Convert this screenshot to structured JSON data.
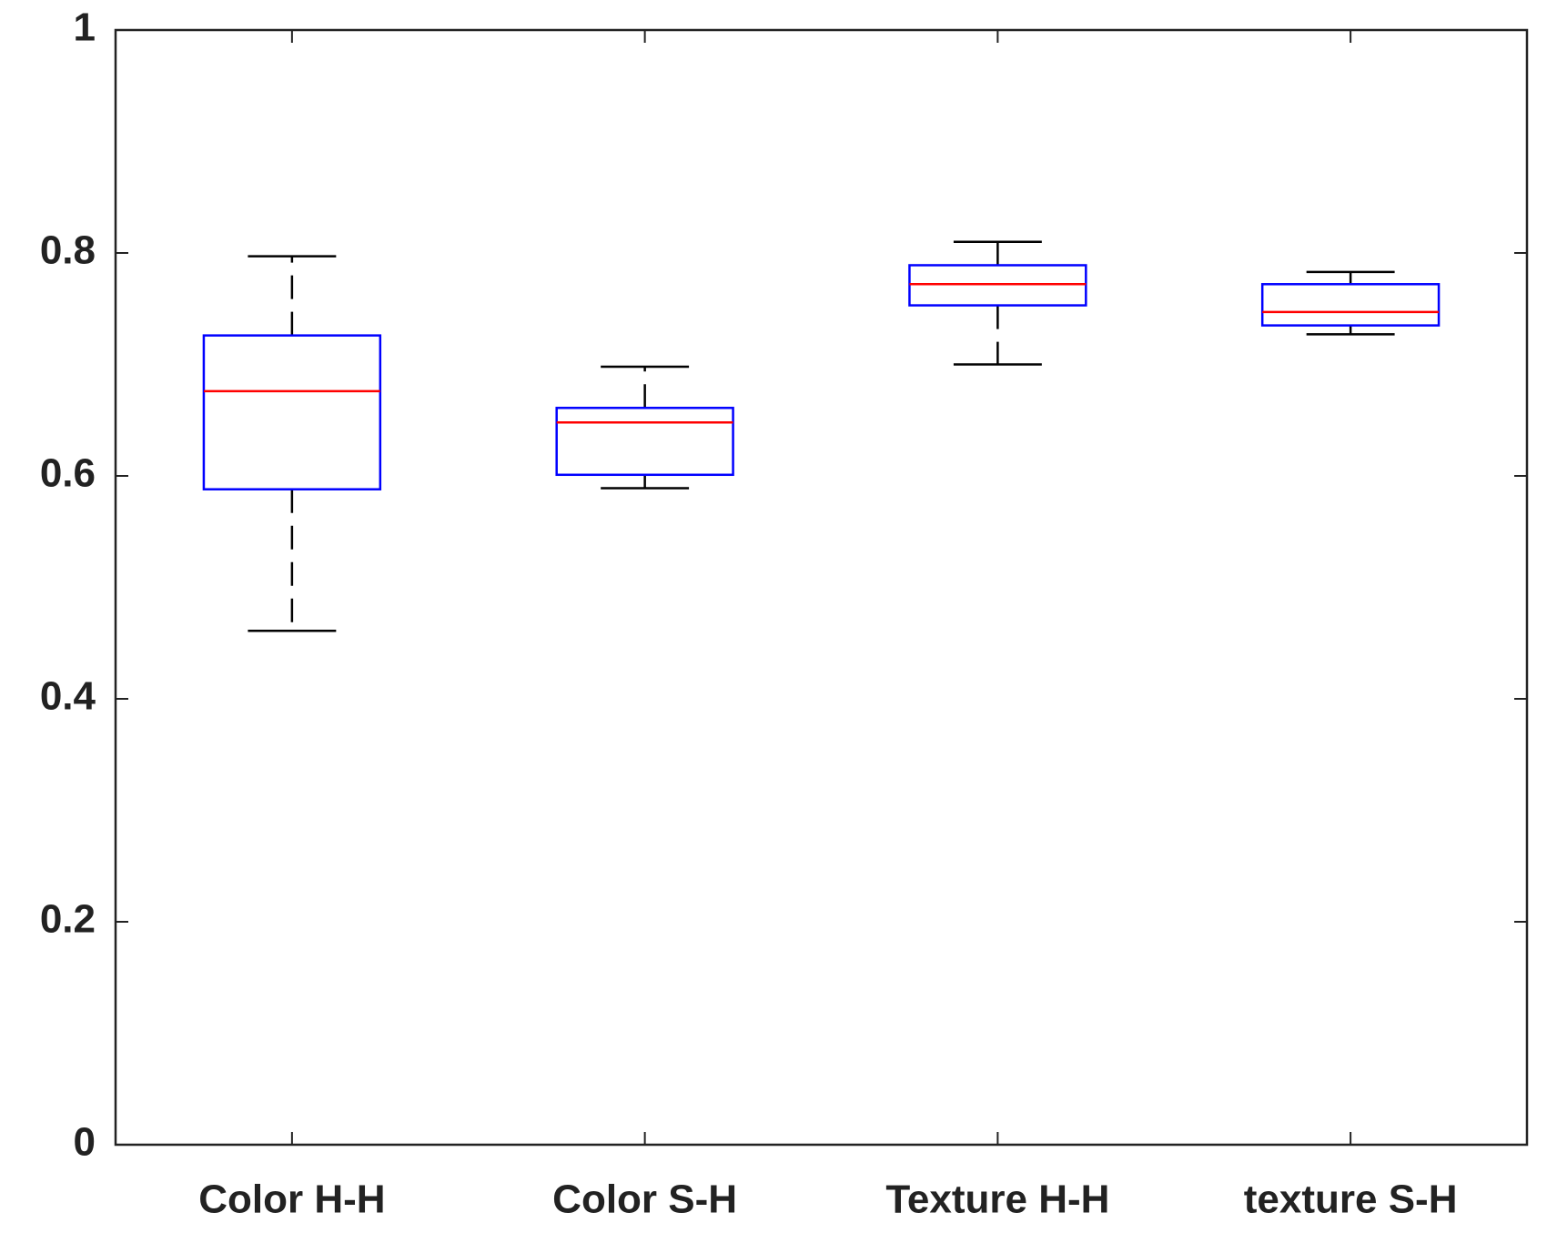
{
  "chart_data": {
    "type": "box",
    "categories": [
      "Color H-H",
      "Color S-H",
      "Texture H-H",
      "texture S-H"
    ],
    "boxes": [
      {
        "min": 0.461,
        "q1": 0.588,
        "median": 0.676,
        "q3": 0.726,
        "max": 0.797
      },
      {
        "min": 0.589,
        "q1": 0.601,
        "median": 0.648,
        "q3": 0.661,
        "max": 0.698
      },
      {
        "min": 0.7,
        "q1": 0.753,
        "median": 0.772,
        "q3": 0.789,
        "max": 0.81
      },
      {
        "min": 0.727,
        "q1": 0.735,
        "median": 0.747,
        "q3": 0.772,
        "max": 0.783
      }
    ],
    "box_color": "#0000ff",
    "median_color": "#ff0000",
    "whisker_color": "#000000",
    "ylim": [
      0,
      1
    ],
    "yticks": [
      0,
      0.2,
      0.4,
      0.6,
      0.8,
      1
    ],
    "grid": false
  }
}
